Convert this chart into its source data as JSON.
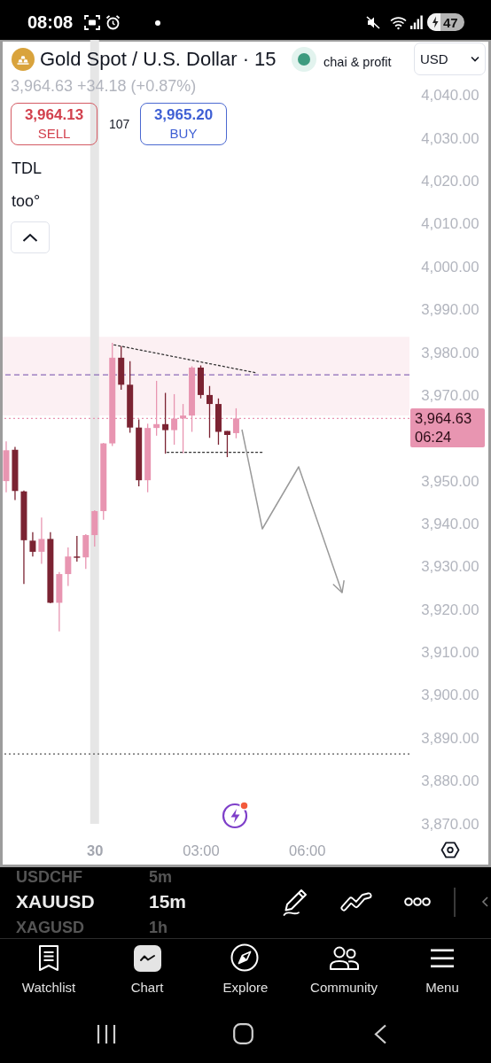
{
  "chart_data": {
    "type": "candlestick",
    "title": "Gold Spot / U.S. Dollar · 15",
    "subtitle": "3,964.63 +34.18 (+0.87%)",
    "x": [
      "--10-29T21:30",
      "--10-29T21:45",
      "--10-29T22:00",
      "--10-29T22:15",
      "--10-29T22:30",
      "--10-29T22:45",
      "--10-29T23:00",
      "--10-29T23:15",
      "--10-29T23:30",
      "--10-29T23:45",
      "--10-30T00:00",
      "--10-30T00:15",
      "--10-30T00:30",
      "--10-30T00:45",
      "--10-30T01:00",
      "--10-30T01:15",
      "--10-30T01:30",
      "--10-30T01:45",
      "--10-30T02:00",
      "--10-30T02:15",
      "--10-30T02:30",
      "--10-30T02:45",
      "--10-30T03:00",
      "--10-30T03:15",
      "--10-30T03:30",
      "--10-30T03:45",
      "--10-30T04:00"
    ],
    "ohlc": [
      [
        3950.0,
        3959.3,
        3947.4,
        3957.2
      ],
      [
        3957.3,
        3958.0,
        3945.6,
        3947.7
      ],
      [
        3947.6,
        3947.8,
        3926.0,
        3936.2
      ],
      [
        3936.1,
        3938.1,
        3932.4,
        3933.5
      ],
      [
        3933.5,
        3941.5,
        3930.7,
        3936.5
      ],
      [
        3936.5,
        3938.1,
        3921.5,
        3921.6
      ],
      [
        3921.6,
        3928.8,
        3914.9,
        3928.3
      ],
      [
        3928.3,
        3934.5,
        3925.5,
        3932.4
      ],
      [
        3932.4,
        3937.2,
        3931.2,
        3932.1
      ],
      [
        3932.2,
        3937.6,
        3929.5,
        3937.4
      ],
      [
        3937.4,
        3943.2,
        3934.7,
        3943.0
      ],
      [
        3943.0,
        3958.9,
        3941.0,
        3958.8
      ],
      [
        3958.8,
        3982.3,
        3958.2,
        3978.8
      ],
      [
        3978.8,
        3981.5,
        3971.3,
        3972.5
      ],
      [
        3972.5,
        3978.0,
        3961.3,
        3962.5
      ],
      [
        3962.5,
        3964.4,
        3948.8,
        3950.2
      ],
      [
        3950.2,
        3963.4,
        3947.4,
        3962.4
      ],
      [
        3962.4,
        3973.4,
        3960.6,
        3963.3
      ],
      [
        3963.3,
        3970.6,
        3956.4,
        3961.9
      ],
      [
        3961.9,
        3970.3,
        3958.5,
        3964.6
      ],
      [
        3964.6,
        3968.0,
        3956.5,
        3965.3
      ],
      [
        3965.3,
        3976.8,
        3961.5,
        3976.5
      ],
      [
        3976.5,
        3977.0,
        3969.3,
        3970.1
      ],
      [
        3970.1,
        3972.2,
        3960.1,
        3968.0
      ],
      [
        3968.0,
        3969.3,
        3958.5,
        3961.5
      ],
      [
        3961.7,
        3961.7,
        3955.6,
        3960.8
      ],
      [
        3961.2,
        3967.0,
        3960.0,
        3964.63
      ]
    ],
    "colors": [
      "#e895b1",
      "#7b2332",
      "#7b2332",
      "#7b2332",
      "#e895b1",
      "#7b2332",
      "#e895b1",
      "#e895b1",
      "#7b2332",
      "#e895b1",
      "#e895b1",
      "#e895b1",
      "#e895b1",
      "#7b2332",
      "#7b2332",
      "#7b2332",
      "#e895b1",
      "#e895b1",
      "#7b2332",
      "#e895b1",
      "#e895b1",
      "#e895b1",
      "#7b2332",
      "#7b2332",
      "#7b2332",
      "#7b2332",
      "#e895b1"
    ],
    "xlim": [
      "--10-29T21:24",
      "--10-30T08:54"
    ],
    "xticks": [
      {
        "value": "--10-30",
        "label": "30"
      },
      {
        "value": "--10-30T03:00",
        "label": "03:00"
      },
      {
        "value": "--10-30T06:00",
        "label": "06:00"
      }
    ],
    "ylim": [
      3870,
      4053
    ],
    "yticks": [
      {
        "value": 3870,
        "label": "3,870.00"
      },
      {
        "value": 3880,
        "label": "3,880.00"
      },
      {
        "value": 3890,
        "label": "3,890.00"
      },
      {
        "value": 3900,
        "label": "3,900.00"
      },
      {
        "value": 3910,
        "label": "3,910.00"
      },
      {
        "value": 3920,
        "label": "3,920.00"
      },
      {
        "value": 3930,
        "label": "3,930.00"
      },
      {
        "value": 3940,
        "label": "3,940.00"
      },
      {
        "value": 3950,
        "label": "3,950.00"
      },
      {
        "value": 3970,
        "label": "3,970.00"
      },
      {
        "value": 3980,
        "label": "3,980.00"
      },
      {
        "value": 3990,
        "label": "3,990.00"
      },
      {
        "value": 4000,
        "label": "4,000.00"
      },
      {
        "value": 4010,
        "label": "4,010.00"
      },
      {
        "value": 4020,
        "label": "4,020.00"
      },
      {
        "value": 4030,
        "label": "4,030.00"
      },
      {
        "value": 4040,
        "label": "4,040.00"
      }
    ],
    "series": [
      {
        "type": "line",
        "x": [
          "--10-30T00:33",
          "--10-30T04:33"
        ],
        "values": [
          3981.8,
          3975.3
        ],
        "color": "#333333",
        "line_style": "dotted"
      },
      {
        "type": "line",
        "x": [
          "--10-30T02:03",
          "--10-30T04:45"
        ],
        "values": [
          3956.7,
          3956.7
        ],
        "color": "#333333",
        "line_style": "dotted"
      }
    ],
    "ref_lines": [
      {
        "axis": "y",
        "value": 3974.8,
        "color": "#8b6bb8",
        "line_style": "dashed"
      },
      {
        "axis": "y",
        "value": 3964.63,
        "label": "3,964.63\n06:24",
        "color": "#e895b1",
        "line_style": "dotted"
      },
      {
        "axis": "y",
        "value": 3886.3,
        "color": "#555555",
        "line_style": "dotted"
      }
    ],
    "bands": [
      {
        "axis": "y",
        "from": 3965.3,
        "to": 3983.7,
        "color": "#fcf0f3"
      },
      {
        "axis": "x",
        "from": "--10-29T23:52:30",
        "to": "--10-30T00:07:30",
        "color": "#e6e6e6"
      }
    ],
    "annotations": [
      "chai & profit",
      "USD",
      "3,964.13",
      "SELL",
      "107",
      "3,965.20",
      "BUY",
      "TDL",
      "too°",
      "USDCHF",
      "5m",
      "XAUUSD",
      "15m",
      "XAGUSD",
      "1h",
      "Watchlist",
      "Chart",
      "Explore",
      "Community",
      "Menu",
      "08:08",
      "47"
    ]
  }
}
